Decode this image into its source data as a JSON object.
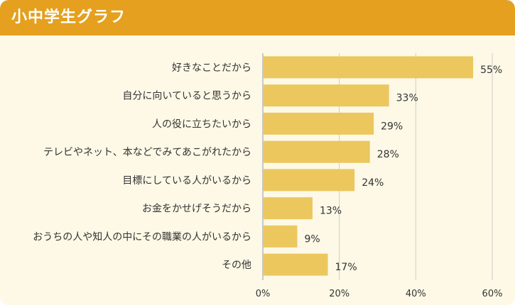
{
  "header": {
    "title": "小中学生グラフ"
  },
  "colors": {
    "header_bg": "#e4a01e",
    "panel_bg": "#fdf9e6",
    "bar": "#ebc75e",
    "grid": "#cccccc"
  },
  "chart_data": {
    "type": "bar",
    "orientation": "horizontal",
    "title": "小中学生グラフ",
    "categories": [
      "好きなことだから",
      "自分に向いていると思うから",
      "人の役に立ちたいから",
      "テレビやネット、本などでみてあこがれたから",
      "目標にしている人がいるから",
      "お金をかせげそうだから",
      "おうちの人や知人の中にその職業の人がいるから",
      "その他"
    ],
    "values": [
      55,
      33,
      29,
      28,
      24,
      13,
      9,
      17
    ],
    "value_labels": [
      "55%",
      "33%",
      "29%",
      "28%",
      "24%",
      "13%",
      "9%",
      "17%"
    ],
    "xlim": [
      0,
      60
    ],
    "xticks": [
      0,
      20,
      40,
      60
    ],
    "xtick_labels": [
      "0%",
      "20%",
      "40%",
      "60%"
    ],
    "grid": true
  }
}
